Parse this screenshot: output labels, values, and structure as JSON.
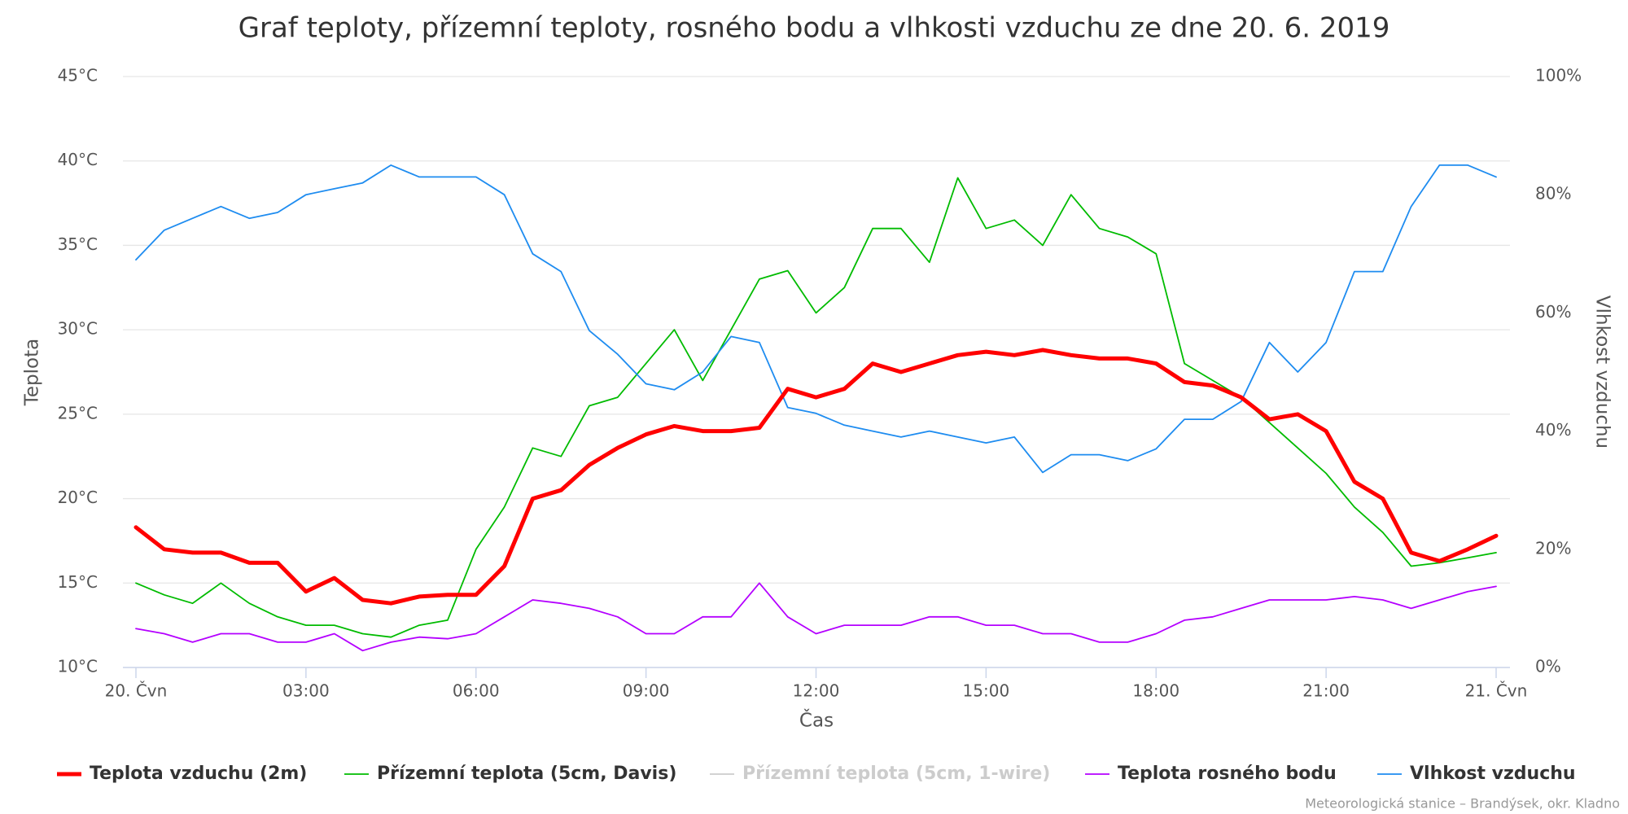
{
  "chart_data": {
    "type": "line",
    "title": "Graf teploty, přízemní teploty, rosného bodu a vlhkosti vzduchu ze dne 20. 6. 2019",
    "x_label": "Čas",
    "y_label": "Teplota",
    "y2_label": "Vlhkost vzduchu",
    "credit": "Meteorologická stanice – Brandýsek, okr. Kladno",
    "x": [
      0,
      0.5,
      1,
      1.5,
      2,
      2.5,
      3,
      3.5,
      4,
      4.5,
      5,
      5.5,
      6,
      6.5,
      7,
      7.5,
      8,
      8.5,
      9,
      9.5,
      10,
      10.5,
      11,
      11.5,
      12,
      12.5,
      13,
      13.5,
      14,
      14.5,
      15,
      15.5,
      16,
      16.5,
      17,
      17.5,
      18,
      18.5,
      19,
      19.5,
      20,
      20.5,
      21,
      21.5,
      22,
      22.5,
      23,
      23.5,
      24
    ],
    "xlim": [
      0,
      24
    ],
    "xticks": [
      {
        "value": 0,
        "label": "20. Čvn"
      },
      {
        "value": 3,
        "label": "03:00"
      },
      {
        "value": 6,
        "label": "06:00"
      },
      {
        "value": 9,
        "label": "09:00"
      },
      {
        "value": 12,
        "label": "12:00"
      },
      {
        "value": 15,
        "label": "15:00"
      },
      {
        "value": 18,
        "label": "18:00"
      },
      {
        "value": 21,
        "label": "21:00"
      },
      {
        "value": 24,
        "label": "21. Čvn"
      }
    ],
    "ylim": [
      10,
      45
    ],
    "yticks": [
      {
        "value": 10,
        "label": "10°C"
      },
      {
        "value": 15,
        "label": "15°C"
      },
      {
        "value": 20,
        "label": "20°C"
      },
      {
        "value": 25,
        "label": "25°C"
      },
      {
        "value": 30,
        "label": "30°C"
      },
      {
        "value": 35,
        "label": "35°C"
      },
      {
        "value": 40,
        "label": "40°C"
      },
      {
        "value": 45,
        "label": "45°C"
      }
    ],
    "y2lim": [
      0,
      100
    ],
    "y2ticks": [
      {
        "value": 0,
        "label": "0%"
      },
      {
        "value": 20,
        "label": "20%"
      },
      {
        "value": 40,
        "label": "40%"
      },
      {
        "value": 60,
        "label": "60%"
      },
      {
        "value": 80,
        "label": "80%"
      },
      {
        "value": 100,
        "label": "100%"
      }
    ],
    "grid": true,
    "legend": "bottom",
    "series": [
      {
        "name": "Teplota vzduchu (2m)",
        "color": "#ff0000",
        "width": 5,
        "visible": true,
        "values": [
          18.3,
          17.0,
          16.8,
          16.8,
          16.2,
          16.2,
          14.5,
          15.3,
          14.0,
          13.8,
          14.2,
          14.3,
          14.3,
          16.0,
          20.0,
          20.5,
          22.0,
          23.0,
          23.8,
          24.3,
          24.0,
          24.0,
          24.2,
          26.5,
          26.0,
          26.5,
          28.0,
          27.5,
          28.0,
          28.5,
          28.7,
          28.5,
          28.8,
          28.5,
          28.3,
          28.3,
          28.0,
          26.9,
          26.7,
          26.0,
          24.7,
          25.0,
          24.0,
          21.0,
          20.0,
          16.8,
          16.3,
          17.0,
          17.8
        ]
      },
      {
        "name": "Přízemní teplota (5cm, Davis)",
        "color": "#00bb00",
        "width": 1.8,
        "visible": true,
        "values": [
          15.0,
          14.3,
          13.8,
          15.0,
          13.8,
          13.0,
          12.5,
          12.5,
          12.0,
          11.8,
          12.5,
          12.8,
          17.0,
          19.5,
          23.0,
          22.5,
          25.5,
          26.0,
          28.0,
          30.0,
          27.0,
          30.0,
          33.0,
          33.5,
          31.0,
          32.5,
          36.0,
          36.0,
          34.0,
          39.0,
          36.0,
          36.5,
          35.0,
          38.0,
          36.0,
          35.5,
          34.5,
          28.0,
          27.0,
          26.0,
          24.5,
          23.0,
          21.5,
          19.5,
          18.0,
          16.0,
          16.2,
          16.5,
          16.8
        ]
      },
      {
        "name": "Přízemní teplota (5cm, 1-wire)",
        "color": "#cccccc",
        "width": 1.8,
        "visible": false,
        "values": [
          null,
          null,
          null,
          null,
          null,
          null,
          null,
          null,
          null,
          null,
          null,
          null,
          null,
          null,
          null,
          null,
          null,
          null,
          null,
          null,
          null,
          null,
          null,
          null,
          null,
          null,
          null,
          null,
          null,
          null,
          null,
          null,
          null,
          null,
          null,
          null,
          null,
          null,
          null,
          null,
          null,
          null,
          null,
          null,
          null,
          null,
          null,
          null,
          null
        ]
      },
      {
        "name": "Teplota rosného bodu",
        "color": "#b400ff",
        "width": 1.8,
        "visible": true,
        "values": [
          12.3,
          12.0,
          11.5,
          12.0,
          12.0,
          11.5,
          11.5,
          12.0,
          11.0,
          11.5,
          11.8,
          11.7,
          12.0,
          13.0,
          14.0,
          13.8,
          13.5,
          13.0,
          12.0,
          12.0,
          13.0,
          13.0,
          15.0,
          13.0,
          12.0,
          12.5,
          12.5,
          12.5,
          13.0,
          13.0,
          12.5,
          12.5,
          12.0,
          12.0,
          11.5,
          11.5,
          12.0,
          12.8,
          13.0,
          13.5,
          14.0,
          14.0,
          14.0,
          14.2,
          14.0,
          13.5,
          14.0,
          14.5,
          14.8
        ]
      },
      {
        "name": "Vlhkost vzduchu",
        "color": "#1e8cf0",
        "width": 1.8,
        "visible": true,
        "axis": "y2",
        "values": [
          69,
          74,
          76,
          78,
          76,
          77,
          80,
          81,
          82,
          85,
          83,
          83,
          83,
          80,
          70,
          67,
          57,
          53,
          48,
          47,
          50,
          56,
          55,
          44,
          43,
          41,
          40,
          39,
          40,
          39,
          38,
          39,
          33,
          36,
          36,
          35,
          37,
          42,
          42,
          45,
          55,
          50,
          55,
          67,
          67,
          78,
          85,
          85,
          83
        ]
      }
    ]
  }
}
